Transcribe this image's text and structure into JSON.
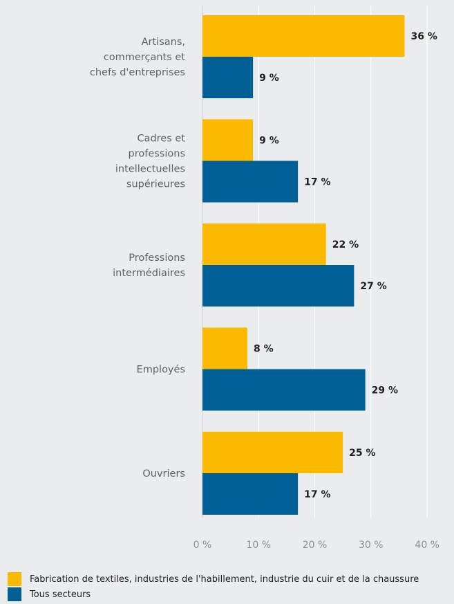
{
  "chart_data": {
    "type": "bar",
    "orientation": "horizontal",
    "categories": [
      [
        "Artisans,",
        "commerçants et",
        "chefs d'entreprises"
      ],
      [
        "Cadres et",
        "professions",
        "intellectuelles",
        "supérieures"
      ],
      [
        "Professions",
        "intermédiaires"
      ],
      [
        "Employés"
      ],
      [
        "Ouvriers"
      ]
    ],
    "series": [
      {
        "name": "Fabrication de textiles, industries de l'habillement, industrie du cuir et de la chaussure",
        "color": "#fbb900",
        "values": [
          36,
          9,
          22,
          8,
          25
        ],
        "labels": [
          "36 %",
          "9 %",
          "22 %",
          "8 %",
          "25 %"
        ]
      },
      {
        "name": "Tous secteurs",
        "color": "#005f94",
        "values": [
          9,
          17,
          27,
          29,
          17
        ],
        "labels": [
          "9 %",
          "17 %",
          "27 %",
          "29 %",
          "17 %"
        ]
      }
    ],
    "xlim": [
      0,
      40
    ],
    "xticks": [
      0,
      10,
      20,
      30,
      40
    ],
    "xtick_labels": [
      "0 %",
      "10 %",
      "20 %",
      "30 %",
      "40 %"
    ],
    "grid": true,
    "legend_position": "bottom-left"
  }
}
